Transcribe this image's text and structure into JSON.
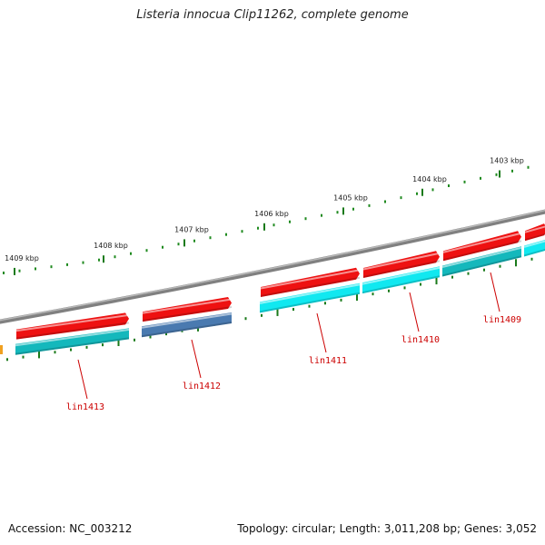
{
  "title": "Listeria innocua Clip11262, complete genome",
  "footer": {
    "accession": "Accession: NC_003212",
    "summary": "Topology: circular; Length: 3,011,208 bp; Genes: 3,052"
  },
  "colors": {
    "backbone": "#808080",
    "cds_forward": "#ee1111",
    "gene_cyan": "#11e8f0",
    "gene_teal": "#14b8bc",
    "gene_steelblue": "#4a7ab0",
    "tick_major": "#1a7a1a",
    "tick_minor": "#1f8a1f",
    "label_red": "#cc0000",
    "accent_orange": "#f0a020"
  },
  "ruler": {
    "labels": [
      "1409 kbp",
      "1408 kbp",
      "1407 kbp",
      "1406 kbp",
      "1405 kbp",
      "1404 kbp",
      "1403 kbp"
    ]
  },
  "genes": [
    {
      "label": "lin1413",
      "upper": "cds_forward",
      "lower": "gene_teal"
    },
    {
      "label": "lin1412",
      "upper": "cds_forward",
      "lower": "gene_steelblue"
    },
    {
      "label": "lin1411",
      "upper": "cds_forward",
      "lower": "gene_cyan"
    },
    {
      "label": "lin1410",
      "upper": "cds_forward",
      "lower": "gene_cyan"
    },
    {
      "label": "lin1409",
      "upper": "cds_forward",
      "lower": "gene_teal"
    },
    {
      "label": "",
      "upper": "cds_forward",
      "lower": "gene_cyan"
    }
  ]
}
